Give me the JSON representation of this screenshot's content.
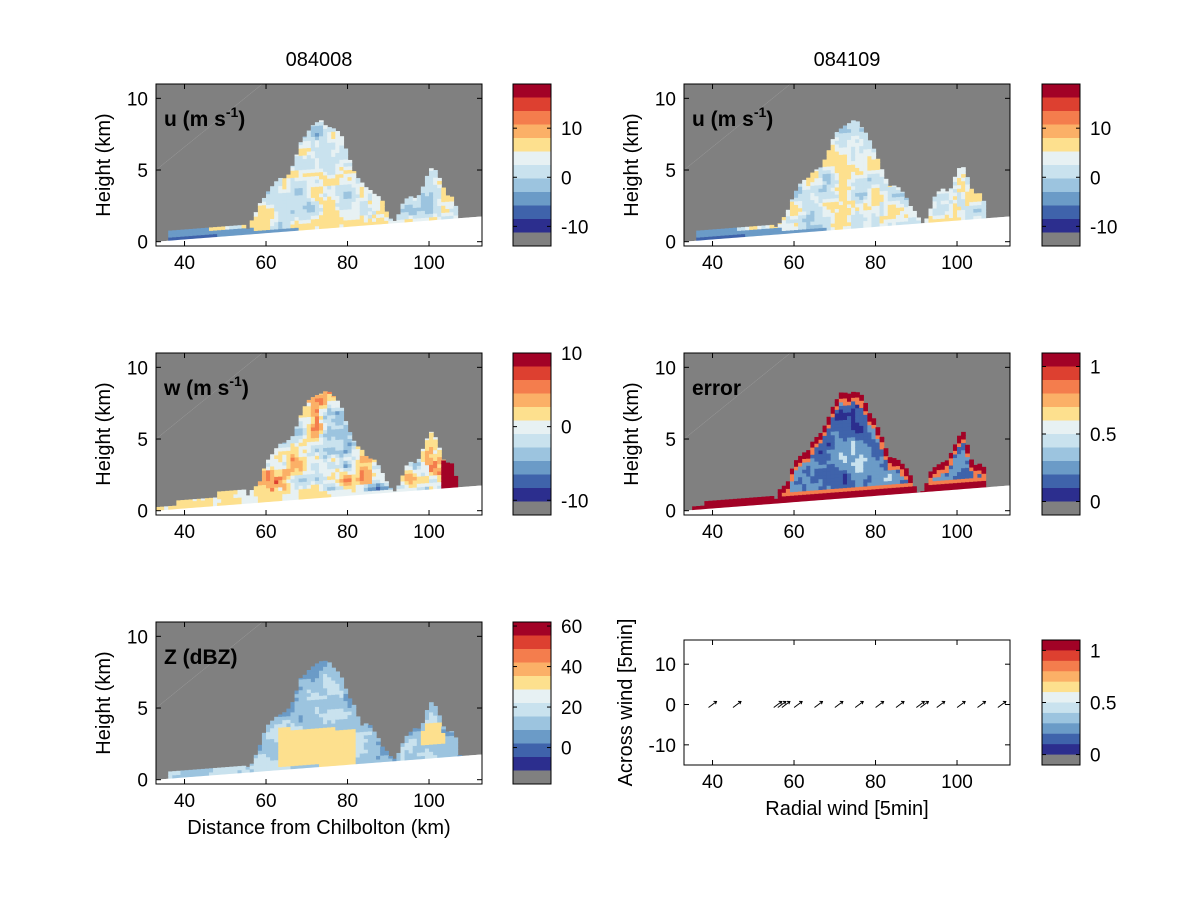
{
  "column_titles": [
    "084008",
    "084109"
  ],
  "colors": {
    "missing": "#808080",
    "frame": "#000000",
    "background": "#ffffff",
    "colormap": [
      "#808080",
      "#2c2e8e",
      "#3f63ab",
      "#6b9bc7",
      "#9cc4df",
      "#c9e2ee",
      "#e7f1f3",
      "#fde08e",
      "#fbb067",
      "#f47d4d",
      "#dd4030",
      "#a20226"
    ]
  },
  "chart_data": [
    {
      "id": "u-084008",
      "type": "heatmap",
      "title": "u (m s-1)",
      "label_main": "u (m s",
      "label_sup": "-1",
      "label_close": ")",
      "column": "084008",
      "xlabel": "",
      "ylabel": "Height (km)",
      "xlim": [
        33,
        113
      ],
      "ylim": [
        -0.3,
        11
      ],
      "xticks": [
        "40",
        "60",
        "80",
        "100"
      ],
      "yticks": [
        "0",
        "5",
        "10"
      ],
      "colorbar": {
        "ticks": [
          "10",
          "0",
          "-10"
        ],
        "range": [
          -14,
          19
        ]
      },
      "field": "u",
      "echo_cells": [
        {
          "x_range": [
            57,
            72
          ],
          "top_km": 4.3,
          "dominant": "light blue / cream"
        },
        {
          "x_range": [
            72,
            82
          ],
          "top_km": 5.9,
          "dominant": "light blue with cream patches"
        },
        {
          "x_range": [
            98,
            106
          ],
          "top_km": 5.3,
          "dominant": "light blue / cream"
        }
      ],
      "low_level_band": {
        "x_range": [
          33,
          95
        ],
        "height_km": [
          0.2,
          0.9
        ],
        "value": "-10"
      }
    },
    {
      "id": "u-084109",
      "type": "heatmap",
      "title": "u (m s-1)",
      "label_main": "u (m s",
      "label_sup": "-1",
      "label_close": ")",
      "column": "084109",
      "xlabel": "",
      "ylabel": "Height (km)",
      "xlim": [
        33,
        113
      ],
      "ylim": [
        -0.3,
        11
      ],
      "xticks": [
        "40",
        "60",
        "80",
        "100"
      ],
      "yticks": [
        "0",
        "5",
        "10"
      ],
      "colorbar": {
        "ticks": [
          "10",
          "0",
          "-10"
        ],
        "range": [
          -14,
          19
        ]
      },
      "field": "u",
      "echo_cells": [
        {
          "x_range": [
            57,
            72
          ],
          "top_km": 4.3,
          "dominant": "light blue / cream"
        },
        {
          "x_range": [
            72,
            82
          ],
          "top_km": 5.9,
          "dominant": "light blue with cream patches"
        },
        {
          "x_range": [
            98,
            106
          ],
          "top_km": 5.3,
          "dominant": "light blue / cream"
        }
      ],
      "low_level_band": {
        "x_range": [
          33,
          95
        ],
        "height_km": [
          0.2,
          0.8
        ],
        "value": "-10"
      }
    },
    {
      "id": "w-084008",
      "type": "heatmap",
      "title": "w (m s-1)",
      "label_main": "w (m s",
      "label_sup": "-1",
      "label_close": ")",
      "column": "084008",
      "xlabel": "",
      "ylabel": "Height (km)",
      "xlim": [
        33,
        113
      ],
      "ylim": [
        -0.3,
        11
      ],
      "xticks": [
        "40",
        "60",
        "80",
        "100"
      ],
      "yticks": [
        "0",
        "5",
        "10"
      ],
      "colorbar": {
        "ticks": [
          "10",
          "0",
          "-10"
        ],
        "range": [
          -12,
          10
        ]
      },
      "field": "w"
    },
    {
      "id": "error-084109",
      "type": "heatmap",
      "title": "error",
      "label_main": "error",
      "label_sup": "",
      "label_close": "",
      "column": "084109",
      "xlabel": "",
      "ylabel": "Height (km)",
      "xlim": [
        33,
        113
      ],
      "ylim": [
        -0.3,
        11
      ],
      "xticks": [
        "40",
        "60",
        "80",
        "100"
      ],
      "yticks": [
        "0",
        "5",
        "10"
      ],
      "colorbar": {
        "ticks": [
          "1",
          "0.5",
          "0"
        ],
        "range": [
          -0.1,
          1.1
        ]
      },
      "field": "error"
    },
    {
      "id": "z-084008",
      "type": "heatmap",
      "title": "Z (dBZ)",
      "label_main": "Z (dBZ)",
      "label_sup": "",
      "label_close": "",
      "column": "084008",
      "xlabel": "Distance from Chilbolton (km)",
      "ylabel": "Height (km)",
      "xlim": [
        33,
        113
      ],
      "ylim": [
        -0.3,
        11
      ],
      "xticks": [
        "40",
        "60",
        "80",
        "100"
      ],
      "yticks": [
        "0",
        "5",
        "10"
      ],
      "colorbar": {
        "ticks": [
          "60",
          "40",
          "20",
          "0"
        ],
        "range": [
          -18,
          62
        ]
      },
      "field": "Z"
    },
    {
      "id": "wind-quiver",
      "type": "scatter",
      "title": "",
      "label_main": "",
      "label_sup": "",
      "label_close": "",
      "column": "084109",
      "xlabel": "Radial wind [5min]",
      "ylabel": "Across wind [5min]",
      "xlim": [
        33,
        113
      ],
      "ylim": [
        -15,
        16
      ],
      "xticks": [
        "40",
        "60",
        "80",
        "100"
      ],
      "yticks": [
        "10",
        "0",
        "-10"
      ],
      "colorbar": {
        "ticks": [
          "1",
          "0.5",
          "0"
        ],
        "range": [
          -0.1,
          1.1
        ]
      },
      "x": [
        40,
        46,
        56,
        57,
        58,
        61,
        66,
        71,
        76,
        81,
        86,
        91,
        92,
        96,
        101,
        106,
        111
      ],
      "y": [
        0,
        0,
        0,
        0,
        0,
        0,
        0,
        0,
        0,
        0,
        0,
        0,
        0,
        0,
        0,
        0,
        0
      ]
    }
  ]
}
